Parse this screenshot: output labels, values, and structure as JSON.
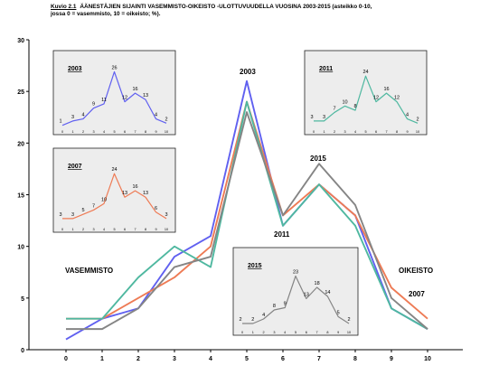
{
  "caption": {
    "label": "Kuvio 2.1",
    "line1": "ÄÄNESTÄJIEN SIJAINTI VASEMMISTO-OIKEISTO -ULOTTUVUUDELLA VUOSINA 2003-2015 (asteikko 0-10,",
    "line2": "jossa 0 = vasemmisto, 10 = oikeisto; %)."
  },
  "chart_data": [
    {
      "id": "main",
      "type": "line",
      "x": [
        0,
        1,
        2,
        3,
        4,
        5,
        6,
        7,
        8,
        9,
        10
      ],
      "xticks": [
        "0",
        "1",
        "2",
        "3",
        "4",
        "5",
        "6",
        "7",
        "8",
        "9",
        "10"
      ],
      "ylim": [
        0,
        30
      ],
      "yticks": [
        "0",
        "5",
        "10",
        "15",
        "20",
        "25",
        "30"
      ],
      "series": [
        {
          "name": "2003",
          "color": "#6060f0",
          "values": [
            1,
            3,
            4,
            9,
            11,
            26,
            12,
            16,
            13,
            4,
            2
          ]
        },
        {
          "name": "2007",
          "color": "#ee7b55",
          "values": [
            3,
            3,
            5,
            7,
            10,
            24,
            13,
            16,
            13,
            6,
            3
          ]
        },
        {
          "name": "2011",
          "color": "#4fb8a0",
          "values": [
            3,
            3,
            7,
            10,
            8,
            24,
            12,
            16,
            12,
            4,
            2
          ]
        },
        {
          "name": "2015",
          "color": "#858585",
          "values": [
            2,
            2,
            4,
            8,
            9,
            23,
            13,
            18,
            14,
            5,
            2
          ]
        }
      ],
      "annotations": {
        "left": "VASEMMISTO",
        "right": "OIKEISTO",
        "year_2003": "2003",
        "year_2015": "2015",
        "year_2011": "2011",
        "year_2007": "2007"
      }
    },
    {
      "id": "inset-2003",
      "type": "line",
      "title": "2003",
      "color": "#6060f0",
      "background": "#ededed",
      "x": [
        0,
        1,
        2,
        3,
        4,
        5,
        6,
        7,
        8,
        9,
        10
      ],
      "values": [
        1,
        3,
        4,
        9,
        11,
        26,
        12,
        16,
        13,
        4,
        2
      ]
    },
    {
      "id": "inset-2007",
      "type": "line",
      "title": "2007",
      "color": "#ee7b55",
      "background": "#ededed",
      "x": [
        0,
        1,
        2,
        3,
        4,
        5,
        6,
        7,
        8,
        9,
        10
      ],
      "values": [
        3,
        3,
        5,
        7,
        10,
        24,
        13,
        16,
        13,
        6,
        3
      ]
    },
    {
      "id": "inset-2011",
      "type": "line",
      "title": "2011",
      "color": "#4fb8a0",
      "background": "#ededed",
      "x": [
        0,
        1,
        2,
        3,
        4,
        5,
        6,
        7,
        8,
        9,
        10
      ],
      "values": [
        3,
        3,
        7,
        10,
        8,
        24,
        12,
        16,
        12,
        4,
        2
      ]
    },
    {
      "id": "inset-2015",
      "type": "line",
      "title": "2015",
      "color": "#858585",
      "background": "#ededed",
      "x": [
        0,
        1,
        2,
        3,
        4,
        5,
        6,
        7,
        8,
        9,
        10
      ],
      "values": [
        2,
        2,
        4,
        8,
        9,
        23,
        13,
        18,
        14,
        5,
        2
      ]
    }
  ]
}
